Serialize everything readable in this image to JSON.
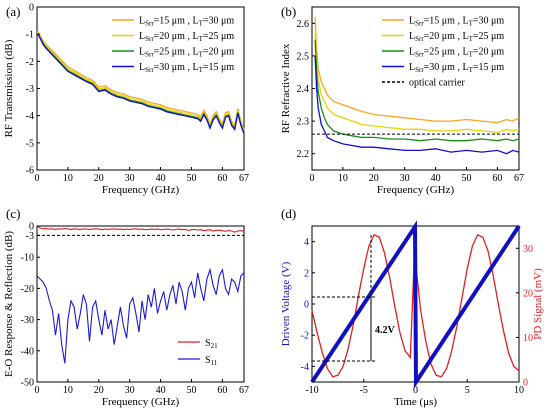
{
  "chart_data": [
    {
      "id": "a",
      "type": "line",
      "panel_label": "(a)",
      "xlabel": "Frequency (GHz)",
      "ylabel": "RF Transmission (dB)",
      "xlim": [
        0,
        67
      ],
      "ylim": [
        -6,
        0
      ],
      "xticks": [
        "0",
        "10",
        "20",
        "30",
        "40",
        "50",
        "60",
        "67"
      ],
      "yticks": [
        "0",
        "-1",
        "-2",
        "-3",
        "-4",
        "-5",
        "-6"
      ],
      "legend_position": "top-right",
      "x": [
        0,
        0.3,
        1,
        2,
        3,
        5,
        7,
        10,
        13,
        16,
        18,
        20,
        22,
        24,
        26,
        28,
        30,
        32,
        34,
        36,
        38,
        40,
        42,
        44,
        46,
        48,
        50,
        52,
        53,
        54,
        55,
        56,
        57,
        58,
        59,
        60,
        61,
        62,
        63,
        64,
        65,
        66,
        67
      ],
      "series": [
        {
          "name": "L_Srr=15 μm , L_T=30 μm",
          "color": "#f5a623",
          "values": [
            -0.9,
            -0.9,
            -1.05,
            -1.25,
            -1.4,
            -1.62,
            -1.85,
            -2.2,
            -2.4,
            -2.6,
            -2.7,
            -2.95,
            -2.9,
            -3.05,
            -3.15,
            -3.2,
            -3.3,
            -3.35,
            -3.4,
            -3.5,
            -3.55,
            -3.6,
            -3.7,
            -3.75,
            -3.8,
            -3.85,
            -3.9,
            -3.95,
            -4.05,
            -3.8,
            -4.0,
            -4.3,
            -4.0,
            -3.85,
            -4.1,
            -4.3,
            -3.9,
            -3.85,
            -4.2,
            -4.35,
            -3.75,
            -4.2,
            -4.5
          ]
        },
        {
          "name": "L_Srr=20 μm , L_T=25 μm",
          "color": "#e8d400",
          "values": [
            -0.95,
            -0.95,
            -1.08,
            -1.3,
            -1.45,
            -1.68,
            -1.92,
            -2.28,
            -2.47,
            -2.66,
            -2.76,
            -3.02,
            -2.97,
            -3.12,
            -3.22,
            -3.27,
            -3.37,
            -3.42,
            -3.47,
            -3.57,
            -3.62,
            -3.67,
            -3.77,
            -3.82,
            -3.87,
            -3.92,
            -3.97,
            -4.02,
            -4.12,
            -3.87,
            -4.07,
            -4.37,
            -4.07,
            -3.92,
            -4.17,
            -4.37,
            -3.97,
            -3.92,
            -4.27,
            -4.42,
            -3.82,
            -4.27,
            -4.57
          ]
        },
        {
          "name": "L_Srr=25 μm , L_T=20 μm",
          "color": "#1a8c1a",
          "values": [
            -1.0,
            -1.0,
            -1.12,
            -1.35,
            -1.5,
            -1.74,
            -1.98,
            -2.34,
            -2.53,
            -2.72,
            -2.82,
            -3.08,
            -3.03,
            -3.18,
            -3.28,
            -3.33,
            -3.43,
            -3.48,
            -3.53,
            -3.63,
            -3.68,
            -3.73,
            -3.83,
            -3.88,
            -3.93,
            -3.98,
            -4.03,
            -4.08,
            -4.18,
            -3.93,
            -4.13,
            -4.43,
            -4.13,
            -3.98,
            -4.23,
            -4.43,
            -4.03,
            -3.98,
            -4.33,
            -4.48,
            -3.88,
            -4.33,
            -4.63
          ]
        },
        {
          "name": "L_Srr=30 μm , L_T=15 μm",
          "color": "#1010d0",
          "values": [
            -1.0,
            -1.0,
            -1.15,
            -1.38,
            -1.53,
            -1.77,
            -2.01,
            -2.37,
            -2.56,
            -2.75,
            -2.85,
            -3.11,
            -3.06,
            -3.21,
            -3.31,
            -3.36,
            -3.46,
            -3.51,
            -3.56,
            -3.66,
            -3.71,
            -3.76,
            -3.86,
            -3.91,
            -3.96,
            -4.01,
            -4.06,
            -4.11,
            -4.21,
            -3.96,
            -4.16,
            -4.46,
            -4.16,
            -4.01,
            -4.26,
            -4.46,
            -4.06,
            -4.01,
            -4.36,
            -4.51,
            -3.91,
            -4.36,
            -4.66
          ]
        }
      ]
    },
    {
      "id": "b",
      "type": "line",
      "panel_label": "(b)",
      "xlabel": "Frequency (GHz)",
      "ylabel": "RF Refractive Index",
      "xlim": [
        0,
        67
      ],
      "ylim": [
        2.15,
        2.65
      ],
      "xticks": [
        "0",
        "10",
        "20",
        "30",
        "40",
        "50",
        "60",
        "67"
      ],
      "yticks": [
        "2.6",
        "2.5",
        "2.4",
        "2.3",
        "2.2"
      ],
      "legend_position": "top-right",
      "x": [
        1,
        1.5,
        2,
        3,
        4,
        5,
        7,
        10,
        13,
        16,
        20,
        25,
        30,
        35,
        40,
        45,
        50,
        55,
        60,
        63,
        65,
        67
      ],
      "series": [
        {
          "name": "L_Srr=15 μm , L_T=30 μm",
          "color": "#f5a623",
          "values": [
            2.62,
            2.52,
            2.46,
            2.42,
            2.4,
            2.38,
            2.36,
            2.35,
            2.34,
            2.33,
            2.32,
            2.315,
            2.31,
            2.305,
            2.3,
            2.3,
            2.305,
            2.3,
            2.295,
            2.305,
            2.3,
            2.31
          ]
        },
        {
          "name": "L_Srr=20 μm , L_T=25 μm",
          "color": "#e8d400",
          "values": [
            2.58,
            2.48,
            2.43,
            2.38,
            2.36,
            2.34,
            2.32,
            2.31,
            2.3,
            2.29,
            2.285,
            2.28,
            2.275,
            2.275,
            2.27,
            2.27,
            2.275,
            2.27,
            2.265,
            2.275,
            2.27,
            2.275
          ]
        },
        {
          "name": "L_Srr=25 μm , L_T=20 μm",
          "color": "#1a8c1a",
          "values": [
            2.55,
            2.45,
            2.39,
            2.34,
            2.31,
            2.29,
            2.27,
            2.26,
            2.255,
            2.25,
            2.25,
            2.245,
            2.245,
            2.24,
            2.245,
            2.24,
            2.24,
            2.245,
            2.24,
            2.245,
            2.24,
            2.245
          ]
        },
        {
          "name": "L_Srr=30 μm , L_T=15 μm",
          "color": "#1010d0",
          "values": [
            2.5,
            2.4,
            2.34,
            2.29,
            2.27,
            2.25,
            2.24,
            2.23,
            2.225,
            2.22,
            2.22,
            2.215,
            2.21,
            2.21,
            2.215,
            2.205,
            2.21,
            2.205,
            2.21,
            2.2,
            2.21,
            2.205
          ]
        }
      ],
      "reference_line": {
        "name": "optical carrier",
        "y": 2.26,
        "color": "#000000",
        "style": "dashed"
      }
    },
    {
      "id": "c",
      "type": "line",
      "panel_label": "(c)",
      "xlabel": "Frequency (GHz)",
      "ylabel": "E-O Response & Reflection (dB)",
      "xlim": [
        0,
        67
      ],
      "ylim": [
        -50,
        0
      ],
      "xticks": [
        "0",
        "10",
        "20",
        "30",
        "40",
        "50",
        "60",
        "67"
      ],
      "yticks": [
        "0",
        "-3",
        "-10",
        "-20",
        "-30",
        "-40",
        "-50"
      ],
      "legend_position": "bottom-right",
      "x": [
        0,
        1,
        2,
        3,
        4,
        5,
        6,
        7,
        8,
        9,
        10,
        11,
        12,
        13,
        14,
        15,
        16,
        17,
        18,
        19,
        20,
        21,
        22,
        23,
        24,
        25,
        26,
        27,
        28,
        29,
        30,
        31,
        32,
        33,
        34,
        35,
        36,
        37,
        38,
        39,
        40,
        41,
        42,
        43,
        44,
        45,
        46,
        47,
        48,
        49,
        50,
        51,
        52,
        53,
        54,
        55,
        56,
        57,
        58,
        59,
        60,
        61,
        62,
        63,
        64,
        65,
        66,
        67
      ],
      "series": [
        {
          "name": "S21",
          "label_main": "S",
          "label_sub": "21",
          "color": "#e02020",
          "values": [
            0,
            -0.6,
            -0.9,
            -0.8,
            -1.0,
            -0.9,
            -1.1,
            -0.9,
            -1.0,
            -0.8,
            -1.0,
            -1.1,
            -0.9,
            -1.0,
            -1.2,
            -0.9,
            -1.0,
            -1.1,
            -1.0,
            -0.9,
            -1.0,
            -1.2,
            -1.0,
            -1.1,
            -1.0,
            -0.9,
            -1.1,
            -1.0,
            -1.2,
            -1.0,
            -1.1,
            -1.0,
            -0.9,
            -1.1,
            -1.0,
            -1.2,
            -1.1,
            -1.0,
            -1.1,
            -1.0,
            -1.2,
            -1.1,
            -1.0,
            -1.1,
            -1.3,
            -1.1,
            -1.0,
            -1.2,
            -1.1,
            -1.4,
            -1.2,
            -1.1,
            -1.3,
            -1.2,
            -1.5,
            -1.3,
            -1.2,
            -1.6,
            -1.4,
            -1.3,
            -1.5,
            -1.7,
            -1.4,
            -1.6,
            -2.0,
            -1.6,
            -1.5,
            -1.7
          ]
        },
        {
          "name": "S11",
          "label_main": "S",
          "label_sub": "11",
          "color": "#1a1ad8",
          "values": [
            -16,
            -17,
            -18,
            -20,
            -24,
            -27,
            -35,
            -28,
            -38,
            -44,
            -30,
            -24,
            -26,
            -33,
            -28,
            -22,
            -25,
            -37,
            -26,
            -24,
            -30,
            -35,
            -27,
            -33,
            -30,
            -38,
            -32,
            -26,
            -32,
            -36,
            -25,
            -23,
            -28,
            -34,
            -24,
            -30,
            -22,
            -26,
            -20,
            -28,
            -24,
            -21,
            -27,
            -22,
            -19,
            -25,
            -18,
            -21,
            -27,
            -20,
            -18,
            -23,
            -15,
            -20,
            -24,
            -17,
            -14,
            -19,
            -22,
            -16,
            -14,
            -20,
            -22,
            -17,
            -18,
            -21,
            -16,
            -15
          ]
        }
      ],
      "reference_line": {
        "y": -3,
        "color": "#000000",
        "style": "dashed"
      }
    },
    {
      "id": "d",
      "type": "line",
      "panel_label": "(d)",
      "xlabel": "Time (μs)",
      "ylabel": "Driven Voltage (V)",
      "ylabel_right": "PD Signal (mV)",
      "xlim": [
        -10,
        10
      ],
      "ylim": [
        -5,
        5
      ],
      "ylim_right": [
        0,
        35
      ],
      "xticks": [
        "-10",
        "-5",
        "0",
        "5",
        "10"
      ],
      "yticks": [
        "4",
        "2",
        "0",
        "-2",
        "-4"
      ],
      "yticks_right": [
        "30",
        "20",
        "10",
        "0"
      ],
      "series": [
        {
          "name": "Driven Voltage",
          "axis": "left",
          "color": "#1010c0",
          "x": [
            -10,
            -0.05,
            0.05,
            10
          ],
          "values": [
            -5,
            4.95,
            -5,
            5
          ]
        },
        {
          "name": "PD Signal",
          "axis": "right",
          "color": "#e02020",
          "x": [
            -10,
            -9.5,
            -9,
            -8.5,
            -8,
            -7.5,
            -7,
            -6.5,
            -6,
            -5.5,
            -5,
            -4.5,
            -4,
            -3.5,
            -3,
            -2.5,
            -2,
            -1.5,
            -1,
            -0.5,
            -0.05,
            0.05,
            0.5,
            1,
            1.5,
            2,
            2.5,
            3,
            3.5,
            4,
            4.5,
            5,
            5.5,
            6,
            6.5,
            7,
            7.5,
            8,
            8.5,
            9,
            9.5,
            10
          ],
          "values": [
            16,
            11,
            6.5,
            3,
            1.2,
            1.5,
            3.5,
            7.5,
            13,
            19.5,
            25.5,
            30.5,
            33,
            32.5,
            29,
            23.5,
            17,
            11,
            7,
            5.5,
            32,
            26,
            16,
            9,
            4,
            1.5,
            1.2,
            3,
            7,
            12.5,
            19,
            25.5,
            30.5,
            33,
            32.5,
            29.5,
            24,
            17.5,
            11.5,
            6.5,
            3.5,
            2.5
          ]
        }
      ],
      "annotation": {
        "text": "4.2V"
      }
    }
  ]
}
